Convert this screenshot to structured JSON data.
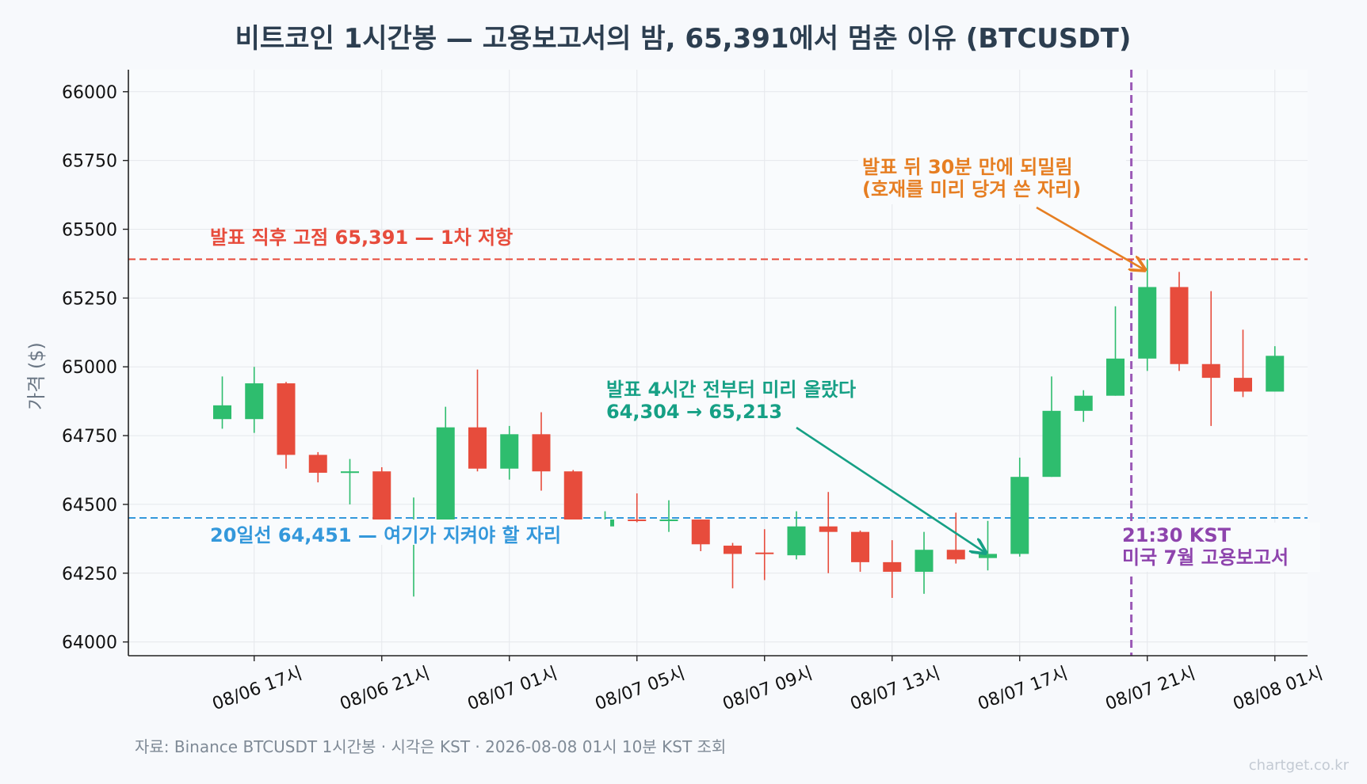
{
  "chart_data": {
    "type": "candlestick",
    "title": "비트코인 1시간봉 — 고용보고서의 밤, 65,391에서 멈춘 이유 (BTCUSDT)",
    "ylabel": "가격 ($)",
    "xlabel": "",
    "ylim": [
      63950,
      66080
    ],
    "yticks": [
      64000,
      64250,
      64500,
      64750,
      65000,
      65250,
      65500,
      65750,
      66000
    ],
    "grid": true,
    "x_start": "08/06 15시",
    "x_tick_labels": [
      "08/06 17시",
      "08/06 21시",
      "08/07 01시",
      "08/07 05시",
      "08/07 09시",
      "08/07 13시",
      "08/07 17시",
      "08/07 21시",
      "08/08 01시"
    ],
    "candles": [
      {
        "o": 64810,
        "h": 64965,
        "l": 64775,
        "c": 64860
      },
      {
        "o": 64810,
        "h": 65000,
        "l": 64760,
        "c": 64940
      },
      {
        "o": 64940,
        "h": 64945,
        "l": 64630,
        "c": 64680
      },
      {
        "o": 64680,
        "h": 64690,
        "l": 64580,
        "c": 64615
      },
      {
        "o": 64615,
        "h": 64665,
        "l": 64500,
        "c": 64620
      },
      {
        "o": 64620,
        "h": 64635,
        "l": 64420,
        "c": 64425
      },
      {
        "o": 64425,
        "h": 64525,
        "l": 64165,
        "c": 64435
      },
      {
        "o": 64435,
        "h": 64855,
        "l": 64430,
        "c": 64780
      },
      {
        "o": 64780,
        "h": 64990,
        "l": 64620,
        "c": 64630
      },
      {
        "o": 64630,
        "h": 64785,
        "l": 64590,
        "c": 64755
      },
      {
        "o": 64755,
        "h": 64835,
        "l": 64550,
        "c": 64620
      },
      {
        "o": 64620,
        "h": 64625,
        "l": 64420,
        "c": 64420
      },
      {
        "o": 64420,
        "h": 64475,
        "l": 64415,
        "c": 64445
      },
      {
        "o": 64445,
        "h": 64540,
        "l": 64435,
        "c": 64440
      },
      {
        "o": 64440,
        "h": 64515,
        "l": 64400,
        "c": 64445
      },
      {
        "o": 64445,
        "h": 64445,
        "l": 64330,
        "c": 64355
      },
      {
        "o": 64350,
        "h": 64360,
        "l": 64195,
        "c": 64320
      },
      {
        "o": 64325,
        "h": 64410,
        "l": 64225,
        "c": 64320
      },
      {
        "o": 64315,
        "h": 64475,
        "l": 64300,
        "c": 64420
      },
      {
        "o": 64420,
        "h": 64545,
        "l": 64250,
        "c": 64400
      },
      {
        "o": 64400,
        "h": 64405,
        "l": 64255,
        "c": 64290
      },
      {
        "o": 64290,
        "h": 64370,
        "l": 64160,
        "c": 64255
      },
      {
        "o": 64255,
        "h": 64400,
        "l": 64175,
        "c": 64335
      },
      {
        "o": 64335,
        "h": 64470,
        "l": 64285,
        "c": 64300
      },
      {
        "o": 64305,
        "h": 64440,
        "l": 64260,
        "c": 64320
      },
      {
        "o": 64320,
        "h": 64670,
        "l": 64310,
        "c": 64600
      },
      {
        "o": 64600,
        "h": 64965,
        "l": 64600,
        "c": 64840
      },
      {
        "o": 64840,
        "h": 64915,
        "l": 64800,
        "c": 64895
      },
      {
        "o": 64895,
        "h": 65220,
        "l": 64895,
        "c": 65030
      },
      {
        "o": 65030,
        "h": 65391,
        "l": 64985,
        "c": 65290
      },
      {
        "o": 65290,
        "h": 65345,
        "l": 64985,
        "c": 65010
      },
      {
        "o": 65010,
        "h": 65275,
        "l": 64785,
        "c": 64960
      },
      {
        "o": 64960,
        "h": 65135,
        "l": 64890,
        "c": 64910
      },
      {
        "o": 64910,
        "h": 65075,
        "l": 64910,
        "c": 65040
      }
    ],
    "hlines": [
      {
        "y": 65391,
        "color": "#e74c3c"
      },
      {
        "y": 64451,
        "color": "#3498db"
      }
    ],
    "event": {
      "x_index": 28.5,
      "color": "#9b59b6"
    },
    "colors": {
      "up": "#2ebd6e",
      "down": "#e74c3c",
      "grid": "#e5e8ec"
    }
  },
  "annotations": {
    "resistance": "발표 직후 고점 65,391 — 1차 저항",
    "support": "20일선 64,451 — 여기가 지켜야 할 자리",
    "pre_run_1": "발표 4시간 전부터 미리 올랐다",
    "pre_run_2": "64,304 → 65,213",
    "pullback_1": "발표 뒤 30분 만에 되밀림",
    "pullback_2": "(호재를 미리 당겨 쓴 자리)",
    "event_1": "21:30 KST",
    "event_2": "미국 7월 고용보고서"
  },
  "footer": {
    "source": "자료: Binance BTCUSDT 1시간봉 · 시각은 KST · 2026-08-08 01시 10분 KST 조회",
    "watermark": "chartget.co.kr"
  }
}
